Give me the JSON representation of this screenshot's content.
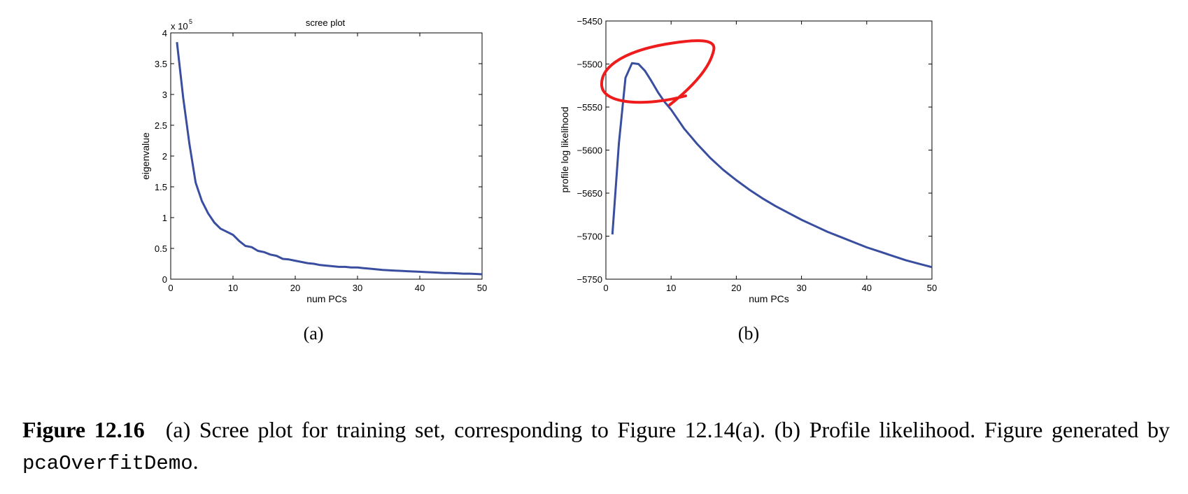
{
  "chart_data": [
    {
      "type": "line",
      "title": "scree plot",
      "xlabel": "num PCs",
      "ylabel": "eigenvalue",
      "exponent_label": "x 10",
      "exponent_power": "5",
      "xlim": [
        0,
        50
      ],
      "ylim": [
        0,
        4
      ],
      "xticks": [
        "0",
        "10",
        "20",
        "30",
        "40",
        "50"
      ],
      "yticks": [
        "0",
        "0.5",
        "1",
        "1.5",
        "2",
        "2.5",
        "3",
        "3.5",
        "4"
      ],
      "xtick_values": [
        0,
        10,
        20,
        30,
        40,
        50
      ],
      "ytick_values": [
        0,
        0.5,
        1,
        1.5,
        2,
        2.5,
        3,
        3.5,
        4
      ],
      "line_color": "#3a4ea0",
      "grid": false,
      "series": [
        {
          "x": [
            1,
            2,
            3,
            4,
            5,
            6,
            7,
            8,
            9,
            10,
            11,
            12,
            13,
            14,
            15,
            16,
            17,
            18,
            19,
            20,
            21,
            22,
            23,
            24,
            25,
            26,
            27,
            28,
            29,
            30,
            31,
            32,
            33,
            34,
            35,
            36,
            37,
            38,
            39,
            40,
            41,
            42,
            43,
            44,
            45,
            46,
            47,
            48,
            49,
            50
          ],
          "values": [
            3.85,
            2.95,
            2.2,
            1.57,
            1.27,
            1.07,
            0.92,
            0.82,
            0.77,
            0.72,
            0.62,
            0.54,
            0.52,
            0.46,
            0.44,
            0.4,
            0.38,
            0.33,
            0.32,
            0.3,
            0.28,
            0.26,
            0.25,
            0.23,
            0.22,
            0.21,
            0.2,
            0.2,
            0.19,
            0.19,
            0.18,
            0.17,
            0.16,
            0.15,
            0.145,
            0.14,
            0.135,
            0.13,
            0.125,
            0.12,
            0.115,
            0.11,
            0.105,
            0.1,
            0.1,
            0.095,
            0.09,
            0.09,
            0.085,
            0.08
          ]
        }
      ],
      "sublabel": "(a)"
    },
    {
      "type": "line",
      "title": "",
      "xlabel": "num PCs",
      "ylabel": "profile log likelihood",
      "xlim": [
        0,
        50
      ],
      "ylim": [
        -5750,
        -5450
      ],
      "xticks": [
        "0",
        "10",
        "20",
        "30",
        "40",
        "50"
      ],
      "yticks": [
        "−5750",
        "−5700",
        "−5650",
        "−5600",
        "−5550",
        "−5500",
        "−5450"
      ],
      "xtick_values": [
        0,
        10,
        20,
        30,
        40,
        50
      ],
      "ytick_values": [
        -5750,
        -5700,
        -5650,
        -5600,
        -5550,
        -5500,
        -5450
      ],
      "line_color": "#3a4ea0",
      "annotation_color": "#ee1c1c",
      "grid": false,
      "series": [
        {
          "x": [
            1,
            2,
            3,
            4,
            5,
            6,
            7,
            8,
            9,
            10,
            11,
            12,
            13,
            14,
            15,
            16,
            17,
            18,
            19,
            20,
            22,
            24,
            26,
            28,
            30,
            32,
            34,
            36,
            38,
            40,
            42,
            44,
            46,
            48,
            50
          ],
          "values": [
            -5698,
            -5592,
            -5516,
            -5499,
            -5500,
            -5508,
            -5520,
            -5533,
            -5544,
            -5553,
            -5564,
            -5575,
            -5584,
            -5593,
            -5601,
            -5609,
            -5616,
            -5623,
            -5629,
            -5635,
            -5646,
            -5656,
            -5665,
            -5673,
            -5681,
            -5688,
            -5695,
            -5701,
            -5707,
            -5713,
            -5718,
            -5723,
            -5728,
            -5732,
            -5736
          ]
        }
      ],
      "sublabel": "(b)"
    }
  ],
  "caption": {
    "figure_number": "Figure 12.16",
    "text_before_code": "(a) Scree plot for training set, corresponding to Figure 12.14(a). (b) Profile likelihood. Figure generated by ",
    "code": "pcaOverfitDemo",
    "text_after_code": "."
  }
}
